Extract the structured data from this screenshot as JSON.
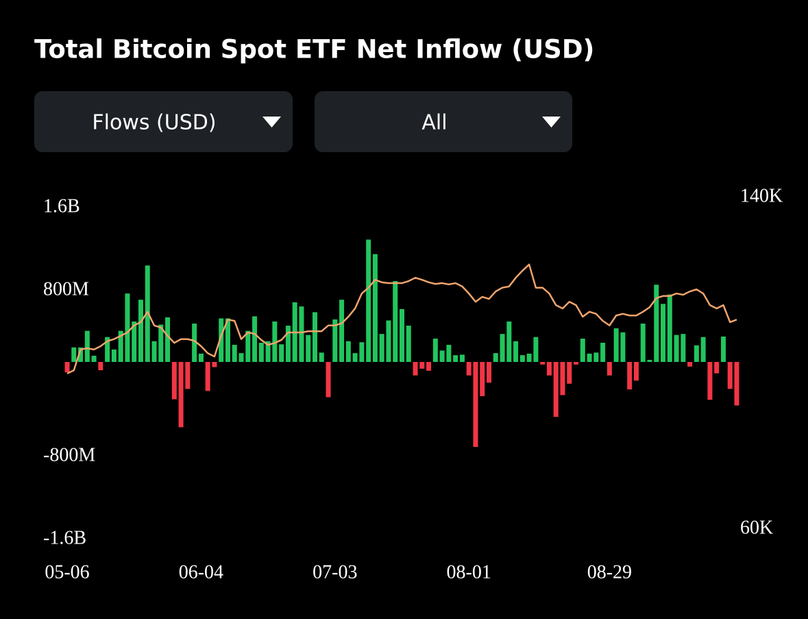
{
  "header": {
    "title": "Total Bitcoin Spot ETF Net Inflow (USD)"
  },
  "controls": [
    {
      "label": "Flows (USD)"
    },
    {
      "label": "All"
    }
  ],
  "chart_data": {
    "type": "bar",
    "categories": [
      "05-06",
      null,
      null,
      null,
      null,
      null,
      null,
      null,
      null,
      null,
      null,
      null,
      null,
      null,
      null,
      null,
      null,
      null,
      null,
      null,
      "06-04",
      null,
      null,
      null,
      null,
      null,
      null,
      null,
      null,
      null,
      null,
      null,
      null,
      null,
      null,
      null,
      null,
      null,
      null,
      null,
      "07-03",
      null,
      null,
      null,
      null,
      null,
      null,
      null,
      null,
      null,
      null,
      null,
      null,
      null,
      null,
      null,
      null,
      null,
      null,
      null,
      "08-01",
      null,
      null,
      null,
      null,
      null,
      null,
      null,
      null,
      null,
      null,
      null,
      null,
      null,
      null,
      null,
      null,
      null,
      null,
      null,
      null,
      "08-29",
      null,
      null,
      null,
      null,
      null,
      null,
      null,
      null,
      null,
      null,
      null,
      null,
      null,
      null,
      null,
      null,
      null,
      null,
      null
    ],
    "series": [
      {
        "type": "bar",
        "positive_color": "#22c55e",
        "negative_color": "#f23645",
        "values": [
          -100000000.0,
          140000000.0,
          140000000.0,
          300000000.0,
          60000000.0,
          -80000000.0,
          240000000.0,
          120000000.0,
          300000000.0,
          660000000.0,
          390000000.0,
          600000000.0,
          930000000.0,
          200000000.0,
          360000000.0,
          430000000.0,
          -360000000.0,
          -630000000.0,
          -260000000.0,
          370000000.0,
          80000000.0,
          -280000000.0,
          -50000000.0,
          420000000.0,
          420000000.0,
          165000000.0,
          85000000.0,
          300000000.0,
          440000000.0,
          185000000.0,
          200000000.0,
          390000000.0,
          170000000.0,
          350000000.0,
          575000000.0,
          535000000.0,
          260000000.0,
          480000000.0,
          90000000.0,
          -340000000.0,
          410000000.0,
          600000000.0,
          200000000.0,
          85000000.0,
          190000000.0,
          1180000000.0,
          1040000000.0,
          270000000.0,
          400000000.0,
          780000000.0,
          510000000.0,
          350000000.0,
          -130000000.0,
          -65000000.0,
          -85000000.0,
          225000000.0,
          110000000.0,
          165000000.0,
          65000000.0,
          70000000.0,
          -130000000.0,
          -820000000.0,
          -330000000.0,
          -200000000.0,
          85000000.0,
          270000000.0,
          390000000.0,
          200000000.0,
          65000000.0,
          80000000.0,
          240000000.0,
          -25000000.0,
          -130000000.0,
          -530000000.0,
          -320000000.0,
          -210000000.0,
          -25000000.0,
          225000000.0,
          80000000.0,
          90000000.0,
          185000000.0,
          -130000000.0,
          325000000.0,
          285000000.0,
          -265000000.0,
          -180000000.0,
          370000000.0,
          20000000.0,
          745000000.0,
          560000000.0,
          650000000.0,
          260000000.0,
          270000000.0,
          -45000000.0,
          160000000.0,
          240000000.0,
          -365000000.0,
          -110000000.0,
          245000000.0,
          -260000000.0,
          -420000000.0
        ]
      },
      {
        "type": "line",
        "color": "#f0a46c",
        "axis": "y2",
        "values": [
          97200,
          98000,
          103000,
          103300,
          103000,
          103800,
          105000,
          105500,
          106300,
          107100,
          108800,
          109600,
          112100,
          108800,
          108300,
          106300,
          104600,
          105500,
          105500,
          105100,
          103800,
          102100,
          101300,
          106300,
          110200,
          109900,
          105500,
          107100,
          106800,
          105300,
          104100,
          104600,
          105300,
          107100,
          107100,
          107100,
          107400,
          107400,
          107400,
          108800,
          108800,
          109300,
          110900,
          112900,
          116500,
          117900,
          119800,
          119200,
          119000,
          119000,
          119000,
          119500,
          120300,
          119800,
          119200,
          118800,
          119000,
          118700,
          119000,
          118200,
          116500,
          114500,
          115700,
          115200,
          117000,
          117900,
          118200,
          120300,
          122000,
          123500,
          117900,
          117900,
          116500,
          113700,
          112900,
          114500,
          113700,
          110900,
          112100,
          111600,
          109900,
          108800,
          111200,
          111600,
          111200,
          111200,
          112100,
          113200,
          115400,
          115900,
          115900,
          116500,
          116200,
          117000,
          117500,
          116500,
          113700,
          112900,
          113700,
          109600,
          110200
        ]
      }
    ],
    "ylim": [
      -1600000000,
      1600000000
    ],
    "yticks": [
      {
        "value": 1600000000,
        "label": "1.6B"
      },
      {
        "value": 800000000,
        "label": "800M"
      },
      {
        "value": -800000000,
        "label": "-800M"
      },
      {
        "value": -1600000000,
        "label": "-1.6B"
      }
    ],
    "y2lim": [
      60000,
      140000
    ],
    "y2ticks": [
      {
        "value": 140000,
        "label": "140K"
      },
      {
        "value": 60000,
        "label": "60K"
      }
    ],
    "grid": false
  }
}
